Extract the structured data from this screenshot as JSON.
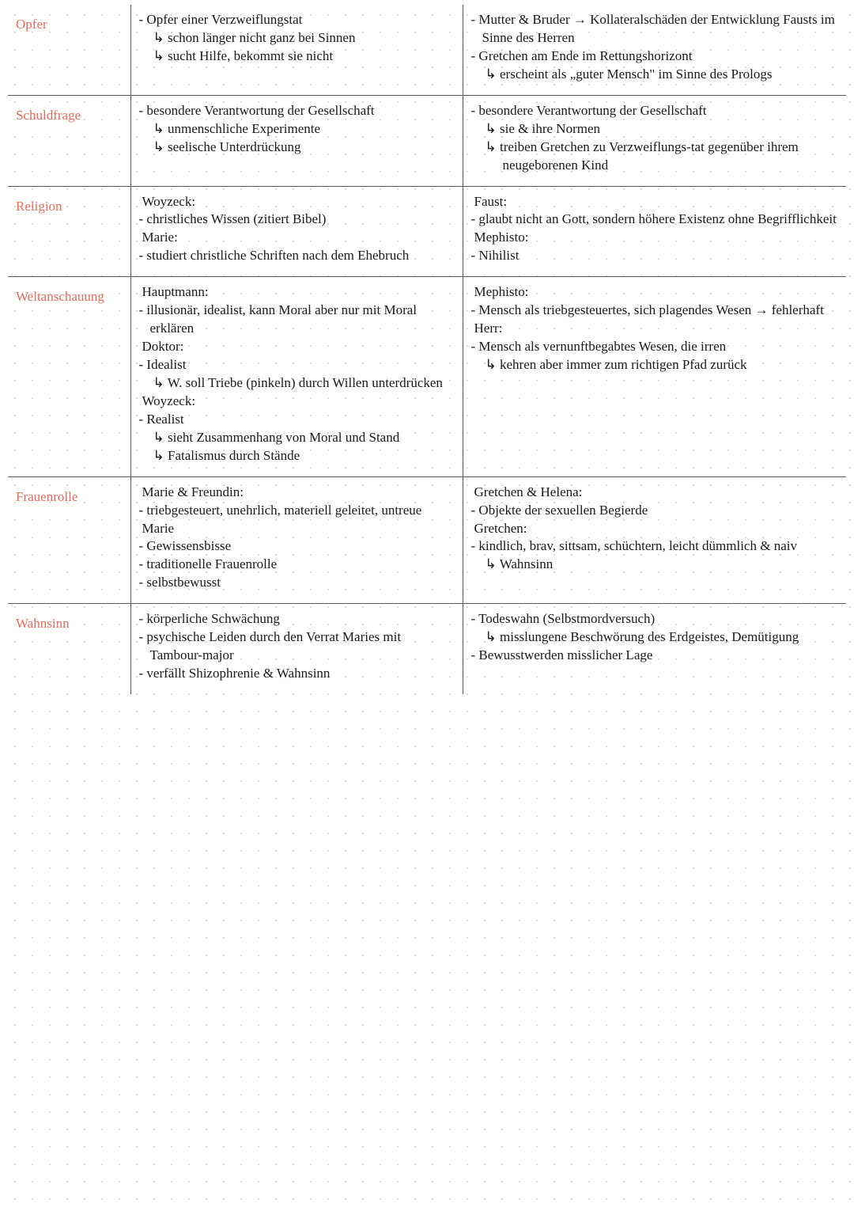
{
  "colors": {
    "label": "#e86a5a",
    "text": "#1a1a1a",
    "rule": "#555555",
    "dot": "#d0d0d0",
    "bg": "#ffffff"
  },
  "rows": [
    {
      "label": "Opfer",
      "left": [
        {
          "cls": "b1",
          "t": "- Opfer einer Verzweiflungstat"
        },
        {
          "cls": "b2 arrow",
          "t": "schon länger nicht ganz bei Sinnen"
        },
        {
          "cls": "b2 arrow",
          "t": "sucht Hilfe, bekommt sie nicht"
        }
      ],
      "right": [
        {
          "cls": "b1",
          "t": "- Mutter & Bruder → Kollateralschäden der Entwicklung Fausts im Sinne des Herren"
        },
        {
          "cls": "b1",
          "t": "- Gretchen am Ende im Rettungshorizont"
        },
        {
          "cls": "b2 arrow",
          "t": "erscheint als „guter Mensch\" im Sinne des Prologs"
        }
      ]
    },
    {
      "label": "Schuldfrage",
      "left": [
        {
          "cls": "b1",
          "t": "- besondere Verantwortung der Gesellschaft"
        },
        {
          "cls": "b2 arrow",
          "t": "unmenschliche Experimente"
        },
        {
          "cls": "b2 arrow",
          "t": "seelische Unterdrückung"
        }
      ],
      "right": [
        {
          "cls": "b1",
          "t": "- besondere Verantwortung der Gesellschaft"
        },
        {
          "cls": "b2 arrow",
          "t": "sie & ihre Normen"
        },
        {
          "cls": "b2 arrow",
          "t": "treiben Gretchen zu Verzweiflungs-tat gegenüber ihrem neugeborenen Kind"
        }
      ]
    },
    {
      "label": "Religion",
      "left": [
        {
          "cls": "hd",
          "t": "Woyzeck:"
        },
        {
          "cls": "b1",
          "t": "- christliches Wissen (zitiert Bibel)"
        },
        {
          "cls": "hd",
          "t": "Marie:"
        },
        {
          "cls": "b1",
          "t": "- studiert christliche Schriften nach dem Ehebruch"
        }
      ],
      "right": [
        {
          "cls": "hd",
          "t": "Faust:"
        },
        {
          "cls": "b1",
          "t": "- glaubt nicht an Gott, sondern höhere Existenz ohne Begrifflichkeit"
        },
        {
          "cls": "hd",
          "t": "Mephisto:"
        },
        {
          "cls": "b1",
          "t": "- Nihilist"
        }
      ]
    },
    {
      "label": "Weltanschauung",
      "left": [
        {
          "cls": "hd",
          "t": "Hauptmann:"
        },
        {
          "cls": "b1",
          "t": "- illusionär, idealist, kann Moral aber nur mit Moral erklären"
        },
        {
          "cls": "hd",
          "t": "Doktor:"
        },
        {
          "cls": "b1",
          "t": "- Idealist"
        },
        {
          "cls": "b2 arrow",
          "t": "W. soll Triebe (pinkeln) durch Willen unterdrücken"
        },
        {
          "cls": "hd",
          "t": "Woyzeck:"
        },
        {
          "cls": "b1",
          "t": "- Realist"
        },
        {
          "cls": "b2 arrow",
          "t": "sieht Zusammenhang von Moral und Stand"
        },
        {
          "cls": "b2 arrow",
          "t": "Fatalismus durch Stände"
        }
      ],
      "right": [
        {
          "cls": "hd",
          "t": "Mephisto:"
        },
        {
          "cls": "b1",
          "t": "- Mensch als triebgesteuertes, sich plagendes Wesen → fehlerhaft"
        },
        {
          "cls": "hd",
          "t": "Herr:"
        },
        {
          "cls": "b1",
          "t": "- Mensch als vernunftbegabtes Wesen, die irren"
        },
        {
          "cls": "b2 arrow",
          "t": "kehren aber immer zum richtigen Pfad zurück"
        }
      ]
    },
    {
      "label": "Frauenrolle",
      "left": [
        {
          "cls": "hd",
          "t": "Marie & Freundin:"
        },
        {
          "cls": "b1",
          "t": "- triebgesteuert, unehrlich, materiell geleitet, untreue"
        },
        {
          "cls": "hd",
          "t": "Marie"
        },
        {
          "cls": "b1",
          "t": "- Gewissensbisse"
        },
        {
          "cls": "b1",
          "t": "- traditionelle Frauenrolle"
        },
        {
          "cls": "b1",
          "t": "- selbstbewusst"
        }
      ],
      "right": [
        {
          "cls": "hd",
          "t": "Gretchen & Helena:"
        },
        {
          "cls": "b1",
          "t": "- Objekte der sexuellen Begierde"
        },
        {
          "cls": "hd",
          "t": "Gretchen:"
        },
        {
          "cls": "b1",
          "t": "- kindlich, brav, sittsam, schüchtern, leicht dümmlich & naiv"
        },
        {
          "cls": "b2 arrow",
          "t": "Wahnsinn"
        }
      ]
    },
    {
      "label": "Wahnsinn",
      "last": true,
      "left": [
        {
          "cls": "b1",
          "t": "- körperliche Schwächung"
        },
        {
          "cls": "b1",
          "t": "- psychische Leiden durch den Verrat Maries mit Tambour-major"
        },
        {
          "cls": "b1",
          "t": "- verfällt Shizophrenie & Wahnsinn"
        }
      ],
      "right": [
        {
          "cls": "b1",
          "t": "- Todeswahn (Selbstmordversuch)"
        },
        {
          "cls": "b2 arrow",
          "t": "misslungene Beschwörung des Erdgeistes, Demütigung"
        },
        {
          "cls": "b1",
          "t": "- Bewusstwerden misslicher Lage"
        }
      ]
    }
  ]
}
